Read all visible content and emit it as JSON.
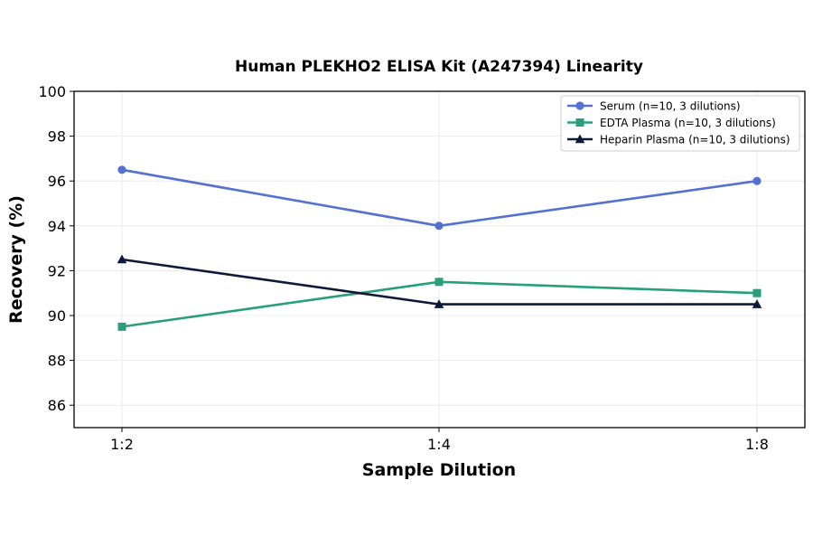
{
  "chart_data": {
    "type": "line",
    "title": "Human PLEKHO2 ELISA Kit (A247394) Linearity",
    "xlabel": "Sample Dilution",
    "ylabel": "Recovery (%)",
    "categories": [
      "1:2",
      "1:4",
      "1:8"
    ],
    "ylim": [
      85,
      100
    ],
    "yticks": [
      86,
      88,
      90,
      92,
      94,
      96,
      98,
      100
    ],
    "grid": true,
    "legend_position": "top-right",
    "series": [
      {
        "name": "Serum (n=10, 3 dilutions)",
        "values": [
          96.5,
          94.0,
          96.0
        ],
        "color": "#5470d0",
        "marker": "circle"
      },
      {
        "name": "EDTA Plasma (n=10, 3 dilutions)",
        "values": [
          89.5,
          91.5,
          91.0
        ],
        "color": "#27a07a",
        "marker": "square"
      },
      {
        "name": "Heparin Plasma (n=10, 3 dilutions)",
        "values": [
          92.5,
          90.5,
          90.5
        ],
        "color": "#0f1a3a",
        "marker": "triangle"
      }
    ]
  }
}
